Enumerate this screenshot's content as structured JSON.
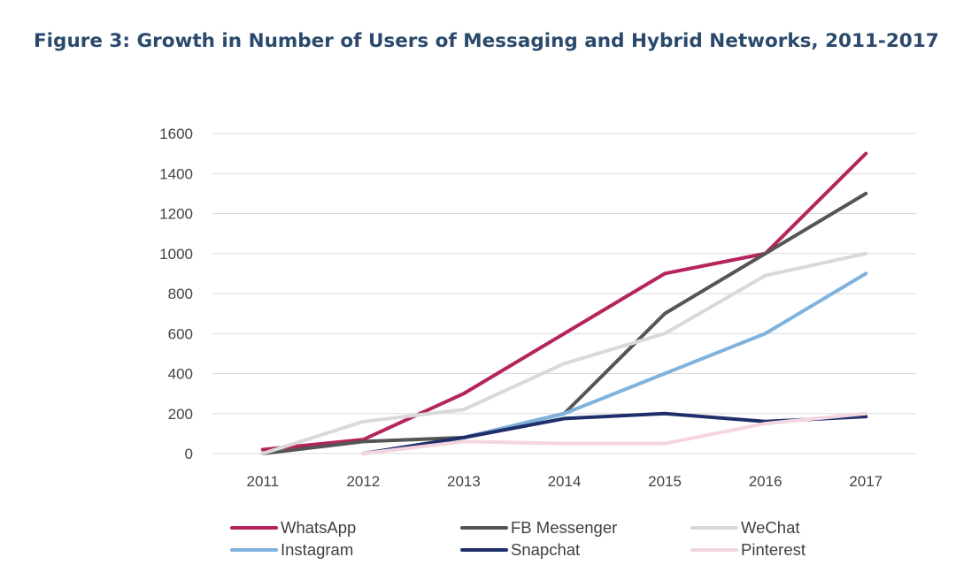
{
  "chart_data": {
    "type": "line",
    "title": "Figure 3: Growth in Number of Users of Messaging and Hybrid Networks, 2011-2017",
    "xlabel": "",
    "ylabel": "",
    "ylim": [
      0,
      1600
    ],
    "yticks": [
      0,
      200,
      400,
      600,
      800,
      1000,
      1200,
      1400,
      1600
    ],
    "categories": [
      "2011",
      "2012",
      "2013",
      "2014",
      "2015",
      "2016",
      "2017"
    ],
    "grid": true,
    "legend": "bottom",
    "series": [
      {
        "name": "WhatsApp",
        "color": "#b5245c",
        "values": [
          20,
          70,
          300,
          600,
          900,
          1000,
          1500
        ]
      },
      {
        "name": "FB Messenger",
        "color": "#555555",
        "values": [
          0,
          60,
          80,
          200,
          700,
          1000,
          1300
        ]
      },
      {
        "name": "WeChat",
        "color": "#d9d9d9",
        "values": [
          0,
          160,
          220,
          450,
          600,
          890,
          1000
        ]
      },
      {
        "name": "Instagram",
        "color": "#7fb2dc",
        "values": [
          null,
          null,
          80,
          200,
          400,
          600,
          900
        ]
      },
      {
        "name": "Snapchat",
        "color": "#1f2f6b",
        "values": [
          null,
          0,
          80,
          175,
          200,
          160,
          185
        ]
      },
      {
        "name": "Pinterest",
        "color": "#f5d5e0",
        "values": [
          null,
          0,
          60,
          50,
          50,
          150,
          200
        ]
      }
    ]
  }
}
